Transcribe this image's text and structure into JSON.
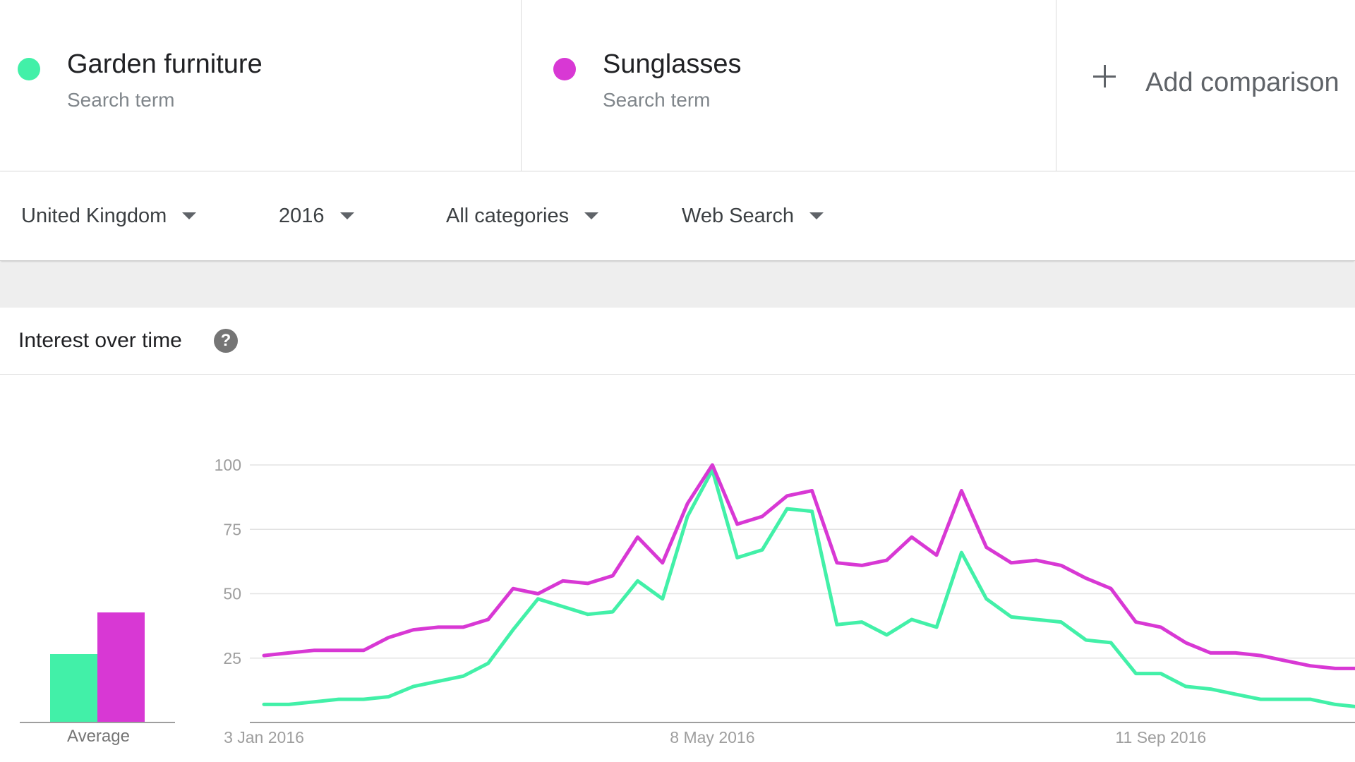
{
  "terms": [
    {
      "name": "Garden furniture",
      "subtitle": "Search term",
      "color": "#42f0a8"
    },
    {
      "name": "Sunglasses",
      "subtitle": "Search term",
      "color": "#d838d4"
    }
  ],
  "add_comparison": {
    "label": "Add comparison"
  },
  "filters": {
    "region": "United Kingdom",
    "period": "2016",
    "category": "All categories",
    "search_type": "Web Search"
  },
  "panel": {
    "title": "Interest over time",
    "help_icon": "?"
  },
  "average": {
    "label": "Average",
    "values": [
      {
        "series": "Garden furniture",
        "value": 29
      },
      {
        "series": "Sunglasses",
        "value": 47
      }
    ]
  },
  "chart_data": {
    "type": "line",
    "title": "Interest over time",
    "ylim": [
      0,
      100
    ],
    "yticks": [
      25,
      50,
      75,
      100
    ],
    "grid": true,
    "x_labels": [
      "3 Jan 2016",
      "8 May 2016",
      "11 Sep 2016"
    ],
    "x_label_indices": [
      0,
      18,
      36
    ],
    "series": [
      {
        "name": "Garden furniture",
        "color": "#42f0a8",
        "values": [
          7,
          7,
          8,
          9,
          9,
          10,
          14,
          16,
          18,
          23,
          36,
          48,
          45,
          42,
          43,
          55,
          48,
          80,
          98,
          64,
          67,
          83,
          82,
          38,
          39,
          34,
          40,
          37,
          66,
          48,
          41,
          40,
          39,
          32,
          31,
          19,
          19,
          14,
          13,
          11,
          9,
          9,
          9,
          7,
          6
        ]
      },
      {
        "name": "Sunglasses",
        "color": "#d838d4",
        "values": [
          26,
          27,
          28,
          28,
          28,
          33,
          36,
          37,
          37,
          40,
          52,
          50,
          55,
          54,
          57,
          72,
          62,
          85,
          100,
          77,
          80,
          88,
          90,
          62,
          61,
          63,
          72,
          65,
          90,
          68,
          62,
          63,
          61,
          56,
          52,
          39,
          37,
          31,
          27,
          27,
          26,
          24,
          22,
          21,
          21
        ]
      }
    ]
  }
}
